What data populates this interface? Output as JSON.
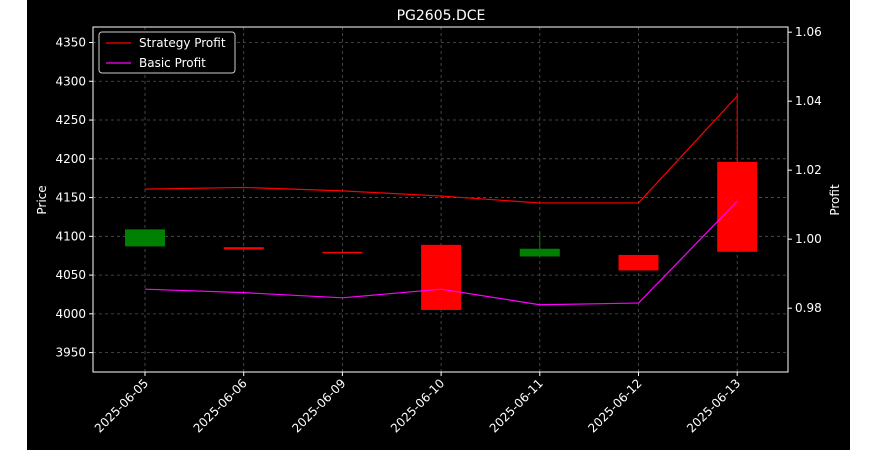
{
  "chart_data": {
    "type": "candlestick",
    "title": "PG2605.DCE",
    "xlabel": "",
    "ylabel": "Price",
    "y2label": "Profit",
    "categories": [
      "2025-06-05",
      "2025-06-06",
      "2025-06-09",
      "2025-06-10",
      "2025-06-11",
      "2025-06-12",
      "2025-06-13"
    ],
    "ylim": [
      3925,
      4370
    ],
    "yticks": [
      3950,
      4000,
      4050,
      4100,
      4150,
      4200,
      4250,
      4300,
      4350
    ],
    "y2lim": [
      0.9615,
      1.0615
    ],
    "y2ticks": [
      "0.98",
      "1.00",
      "1.02",
      "1.04",
      "1.06"
    ],
    "y2tick_values": [
      0.98,
      1.0,
      1.02,
      1.04,
      1.06
    ],
    "grid": true,
    "legend_placement": "top-left",
    "candles": [
      {
        "date": "2025-06-05",
        "open": 4087,
        "close": 4109,
        "high": 4109,
        "low": 4087
      },
      {
        "date": "2025-06-06",
        "open": 4086,
        "close": 4083,
        "high": 4086,
        "low": 4083
      },
      {
        "date": "2025-06-09",
        "open": 4080,
        "close": 4079,
        "high": 4080,
        "low": 4079
      },
      {
        "date": "2025-06-10",
        "open": 4089,
        "close": 4005,
        "high": 4089,
        "low": 4005
      },
      {
        "date": "2025-06-11",
        "open": 4074,
        "close": 4084,
        "high": 4106,
        "low": 4074
      },
      {
        "date": "2025-06-12",
        "open": 4076,
        "close": 4056,
        "high": 4076,
        "low": 4056
      },
      {
        "date": "2025-06-13",
        "open": 4196,
        "close": 4080,
        "high": 4284,
        "low": 4080
      }
    ],
    "series": [
      {
        "name": "Strategy Profit",
        "color": "#ff0000",
        "axis": "right",
        "values": [
          1.0145,
          1.015,
          1.014,
          1.0125,
          1.0105,
          1.0105,
          1.0415
        ]
      },
      {
        "name": "Basic Profit",
        "color": "#ff00ff",
        "axis": "right",
        "values": [
          0.9855,
          0.9845,
          0.983,
          0.9855,
          0.981,
          0.9815,
          1.011
        ]
      }
    ],
    "colors": {
      "up": "#008000",
      "down": "#ff0000",
      "background": "#000000",
      "grid": "#555555",
      "text": "#ffffff"
    }
  }
}
